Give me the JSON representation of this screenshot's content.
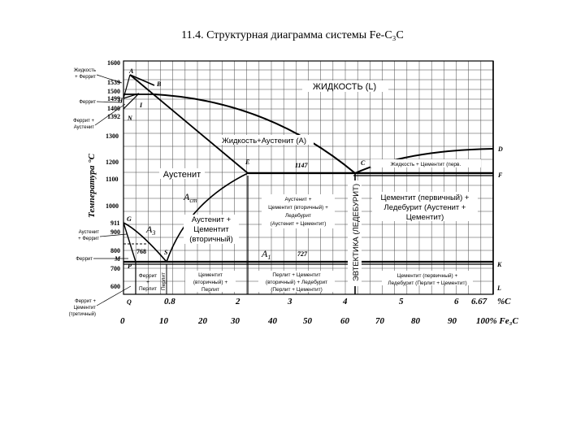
{
  "title": "11.4. Структурная диаграмма системы Fe-C₃C",
  "axes": {
    "y_title": "Температура °С",
    "y_ticks": [
      "1600",
      "1539",
      "1500",
      "1499",
      "1400",
      "1392",
      "1300",
      "1200",
      "1100",
      "1000",
      "911",
      "900",
      "800",
      "768",
      "700",
      "600"
    ],
    "x_ticks_c": [
      "0.8",
      "2",
      "3",
      "4",
      "5",
      "6",
      "6.67"
    ],
    "x_ticks_fe3c": [
      "0",
      "10",
      "20",
      "30",
      "40",
      "50",
      "60",
      "70",
      "80",
      "90",
      "100% Fe₃C"
    ],
    "x_unit_c": "%С"
  },
  "points": {
    "A": "A",
    "B": "B",
    "H": "H",
    "J": "I",
    "N": "N",
    "E": "E",
    "C": "C",
    "D": "D",
    "F": "F",
    "G": "G",
    "P": "P",
    "S": "S",
    "K": "K",
    "Q": "Q",
    "M": "M",
    "L": "L"
  },
  "temps": {
    "eutectic": "1147",
    "eutectoid": "727"
  },
  "lines": {
    "acm": "A",
    "acm_sub": "cm",
    "a3": "A",
    "a3_sub": "3",
    "a1": "A",
    "a1_sub": "1"
  },
  "side_labels": {
    "liquid_ferrite": [
      "Жидкость",
      "+ Феррит"
    ],
    "ferrite_top": "Феррит",
    "ferrite_austenite_top": [
      "Феррит +",
      "Аустенит"
    ],
    "austenite_ferrite": [
      "Аустенит",
      "+ Феррит"
    ],
    "ferrite_low": "Феррит",
    "ferrite_cementite": [
      "Феррит +",
      "Цементит",
      "(третичный)"
    ]
  },
  "regions": {
    "liquid": "ЖИДКОСТЬ (L)",
    "liquid_austenite": "Жидкость+Аустенит (А)",
    "liquid_cementite": "Жидкость + Цементит (перв.",
    "austenite": "Аустенит",
    "austenite_cementite_ii": [
      "Аустенит +",
      "Цементит",
      "(вторичный)"
    ],
    "aust_cem_led": [
      "Аустенит +",
      "Цементит (вторичный) +",
      "Ледебурит",
      "(Аустенит + Цементит)"
    ],
    "cem_led_upper": [
      "Цементит (первичный) +",
      "Ледебурит (Аустенит +",
      "Цементит)"
    ],
    "eutectic_vertical": "ЭВТЕКТИКА (ЛЕДЕБУРИТ)",
    "ferrite_pearlite": [
      "Феррит",
      "+",
      "Перлит"
    ],
    "pearlite": "Перлит",
    "pearl_cem": [
      "Цементит",
      "(вторичный) +",
      "Перлит"
    ],
    "pearl_cem_led": [
      "Перлит + Цементит",
      "(вторичный) + Ледебурит",
      "(Перлит + Цементит)"
    ],
    "cem_led_lower": [
      "Цементит (первичный) +",
      "Ледебурит (Перлит + Цементит)"
    ]
  }
}
